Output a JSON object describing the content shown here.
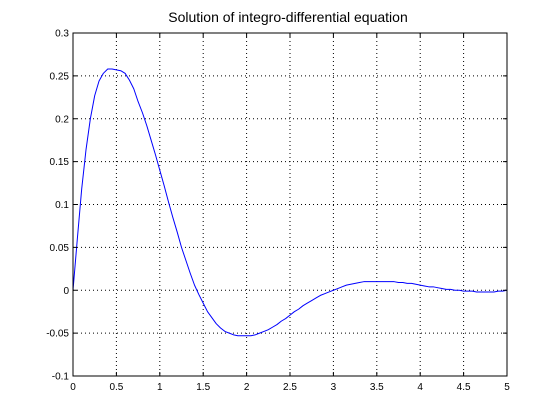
{
  "chart_data": {
    "type": "line",
    "title": "Solution of integro-differential equation",
    "xlabel": "",
    "ylabel": "",
    "xlim": [
      0,
      5
    ],
    "ylim": [
      -0.1,
      0.3
    ],
    "grid": true,
    "grid_style": "dotted",
    "x_ticks": [
      0,
      0.5,
      1,
      1.5,
      2,
      2.5,
      3,
      3.5,
      4,
      4.5,
      5
    ],
    "x_tick_labels": [
      "0",
      "0.5",
      "1",
      "1.5",
      "2",
      "2.5",
      "3",
      "3.5",
      "4",
      "4.5",
      "5"
    ],
    "y_ticks": [
      -0.1,
      -0.05,
      0,
      0.05,
      0.1,
      0.15,
      0.2,
      0.25,
      0.3
    ],
    "y_tick_labels": [
      "-0.1",
      "-0.05",
      "0",
      "0.05",
      "0.1",
      "0.15",
      "0.2",
      "0.25",
      "0.3"
    ],
    "series": [
      {
        "color": "#0000ff",
        "x": [
          0,
          0.05,
          0.1,
          0.15,
          0.2,
          0.25,
          0.3,
          0.35,
          0.4,
          0.45,
          0.5,
          0.55,
          0.6,
          0.65,
          0.7,
          0.75,
          0.8,
          0.85,
          0.9,
          0.95,
          1.0,
          1.05,
          1.1,
          1.15,
          1.2,
          1.25,
          1.3,
          1.35,
          1.4,
          1.45,
          1.5,
          1.55,
          1.6,
          1.65,
          1.7,
          1.75,
          1.8,
          1.85,
          1.9,
          1.95,
          2.0,
          2.05,
          2.1,
          2.15,
          2.2,
          2.25,
          2.3,
          2.35,
          2.4,
          2.45,
          2.5,
          2.55,
          2.6,
          2.65,
          2.7,
          2.75,
          2.8,
          2.85,
          2.9,
          2.95,
          3.0,
          3.05,
          3.1,
          3.15,
          3.2,
          3.25,
          3.3,
          3.35,
          3.4,
          3.45,
          3.5,
          3.55,
          3.6,
          3.65,
          3.7,
          3.75,
          3.8,
          3.85,
          3.9,
          3.95,
          4.0,
          4.05,
          4.1,
          4.15,
          4.2,
          4.25,
          4.3,
          4.35,
          4.4,
          4.45,
          4.5,
          4.55,
          4.6,
          4.65,
          4.7,
          4.75,
          4.8,
          4.85,
          4.9,
          4.95,
          5.0
        ],
        "y": [
          0,
          0.06,
          0.118,
          0.164,
          0.2,
          0.227,
          0.244,
          0.253,
          0.258,
          0.258,
          0.257,
          0.256,
          0.253,
          0.245,
          0.235,
          0.22,
          0.207,
          0.192,
          0.175,
          0.158,
          0.14,
          0.122,
          0.103,
          0.085,
          0.068,
          0.05,
          0.035,
          0.02,
          0.006,
          -0.005,
          -0.015,
          -0.025,
          -0.032,
          -0.039,
          -0.044,
          -0.048,
          -0.05,
          -0.052,
          -0.053,
          -0.053,
          -0.053,
          -0.053,
          -0.052,
          -0.05,
          -0.048,
          -0.046,
          -0.043,
          -0.04,
          -0.036,
          -0.033,
          -0.029,
          -0.025,
          -0.022,
          -0.018,
          -0.015,
          -0.012,
          -0.009,
          -0.006,
          -0.004,
          -0.002,
          0.0,
          0.002,
          0.004,
          0.006,
          0.007,
          0.008,
          0.009,
          0.01,
          0.01,
          0.01,
          0.01,
          0.01,
          0.01,
          0.01,
          0.01,
          0.009,
          0.009,
          0.008,
          0.008,
          0.007,
          0.006,
          0.005,
          0.004,
          0.004,
          0.003,
          0.002,
          0.001,
          0.001,
          0.0,
          0.0,
          -0.001,
          -0.001,
          -0.001,
          -0.002,
          -0.002,
          -0.002,
          -0.002,
          -0.002,
          -0.001,
          -0.001,
          0.0
        ]
      }
    ]
  }
}
